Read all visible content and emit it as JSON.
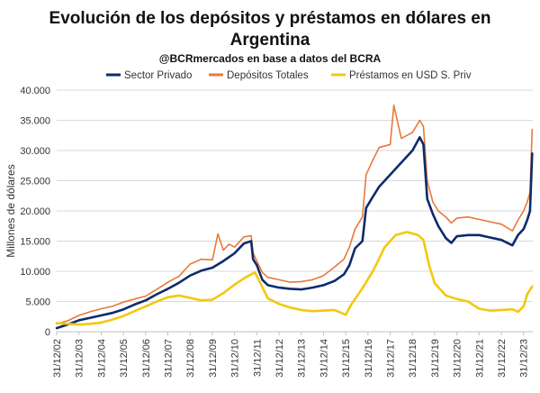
{
  "chart_data": {
    "type": "line",
    "title": "Evolución de los depósitos y préstamos en dólares en Argentina",
    "title_lines": [
      "Evolución de los depósitos y préstamos en dólares en",
      "Argentina"
    ],
    "subtitle": "@BCRmercados en base a datos del BCRA",
    "xlabel": "",
    "ylabel": "Millones de dólares",
    "ylim": [
      0,
      40000
    ],
    "xlim": [
      "2002-12-31",
      "2024-05-31"
    ],
    "y_ticks": [
      {
        "value": 0,
        "label": "0"
      },
      {
        "value": 5000,
        "label": "5.000"
      },
      {
        "value": 10000,
        "label": "10.000"
      },
      {
        "value": 15000,
        "label": "15.000"
      },
      {
        "value": 20000,
        "label": "20.000"
      },
      {
        "value": 25000,
        "label": "25.000"
      },
      {
        "value": 30000,
        "label": "30.000"
      },
      {
        "value": 35000,
        "label": "35.000"
      },
      {
        "value": 40000,
        "label": "40.000"
      }
    ],
    "x_ticks": [
      {
        "date": "2002-12-31",
        "label": "31/12/02"
      },
      {
        "date": "2003-12-31",
        "label": "31/12/03"
      },
      {
        "date": "2004-12-31",
        "label": "31/12/04"
      },
      {
        "date": "2005-12-31",
        "label": "31/12/05"
      },
      {
        "date": "2006-12-31",
        "label": "31/12/06"
      },
      {
        "date": "2007-12-31",
        "label": "31/12/07"
      },
      {
        "date": "2008-12-31",
        "label": "31/12/08"
      },
      {
        "date": "2009-12-31",
        "label": "31/12/09"
      },
      {
        "date": "2010-12-31",
        "label": "31/12/10"
      },
      {
        "date": "2011-12-31",
        "label": "31/12/11"
      },
      {
        "date": "2012-12-31",
        "label": "31/12/12"
      },
      {
        "date": "2013-12-31",
        "label": "31/12/13"
      },
      {
        "date": "2014-12-31",
        "label": "31/12/14"
      },
      {
        "date": "2015-12-31",
        "label": "31/12/15"
      },
      {
        "date": "2016-12-31",
        "label": "31/12/16"
      },
      {
        "date": "2017-12-31",
        "label": "31/12/17"
      },
      {
        "date": "2018-12-31",
        "label": "31/12/18"
      },
      {
        "date": "2019-12-31",
        "label": "31/12/19"
      },
      {
        "date": "2020-12-31",
        "label": "31/12/20"
      },
      {
        "date": "2021-12-31",
        "label": "31/12/21"
      },
      {
        "date": "2022-12-31",
        "label": "31/12/22"
      },
      {
        "date": "2023-12-31",
        "label": "31/12/23"
      }
    ],
    "grid": "horizontal",
    "legend_position": "top",
    "series": [
      {
        "name": "Sector Privado",
        "color": "#0d2b6b",
        "points": [
          [
            "2003-01-01",
            600
          ],
          [
            "2003-07-01",
            1200
          ],
          [
            "2004-01-01",
            1900
          ],
          [
            "2004-07-01",
            2300
          ],
          [
            "2005-01-01",
            2700
          ],
          [
            "2005-07-01",
            3100
          ],
          [
            "2006-01-01",
            3700
          ],
          [
            "2006-07-01",
            4500
          ],
          [
            "2007-01-01",
            5200
          ],
          [
            "2007-07-01",
            6200
          ],
          [
            "2008-01-01",
            7100
          ],
          [
            "2008-07-01",
            8100
          ],
          [
            "2009-01-01",
            9300
          ],
          [
            "2009-07-01",
            10100
          ],
          [
            "2010-01-01",
            10600
          ],
          [
            "2010-07-01",
            11700
          ],
          [
            "2011-01-01",
            13000
          ],
          [
            "2011-06-01",
            14600
          ],
          [
            "2011-10-01",
            15000
          ],
          [
            "2011-11-01",
            12000
          ],
          [
            "2012-01-01",
            11000
          ],
          [
            "2012-04-01",
            8600
          ],
          [
            "2012-07-01",
            7700
          ],
          [
            "2013-01-01",
            7300
          ],
          [
            "2013-07-01",
            7100
          ],
          [
            "2014-01-01",
            7000
          ],
          [
            "2014-07-01",
            7300
          ],
          [
            "2015-01-01",
            7700
          ],
          [
            "2015-07-01",
            8400
          ],
          [
            "2015-12-01",
            9500
          ],
          [
            "2016-03-01",
            11000
          ],
          [
            "2016-06-01",
            13800
          ],
          [
            "2016-10-01",
            15000
          ],
          [
            "2016-12-01",
            20500
          ],
          [
            "2017-03-01",
            22000
          ],
          [
            "2017-07-01",
            24000
          ],
          [
            "2018-01-01",
            26000
          ],
          [
            "2018-07-01",
            28000
          ],
          [
            "2019-01-01",
            30000
          ],
          [
            "2019-05-01",
            32200
          ],
          [
            "2019-07-01",
            31000
          ],
          [
            "2019-09-01",
            22000
          ],
          [
            "2019-12-01",
            19500
          ],
          [
            "2020-03-01",
            17500
          ],
          [
            "2020-07-01",
            15500
          ],
          [
            "2020-10-01",
            14700
          ],
          [
            "2021-01-01",
            15800
          ],
          [
            "2021-07-01",
            16000
          ],
          [
            "2022-01-01",
            16000
          ],
          [
            "2022-07-01",
            15600
          ],
          [
            "2023-01-01",
            15200
          ],
          [
            "2023-07-01",
            14300
          ],
          [
            "2023-10-01",
            16000
          ],
          [
            "2024-01-01",
            17000
          ],
          [
            "2024-03-01",
            18500
          ],
          [
            "2024-04-15",
            20000
          ],
          [
            "2024-05-20",
            29500
          ]
        ]
      },
      {
        "name": "Depósitos Totales",
        "color": "#e8783a",
        "points": [
          [
            "2003-01-01",
            1300
          ],
          [
            "2003-07-01",
            1800
          ],
          [
            "2004-01-01",
            2700
          ],
          [
            "2004-07-01",
            3300
          ],
          [
            "2005-01-01",
            3800
          ],
          [
            "2005-07-01",
            4200
          ],
          [
            "2006-01-01",
            4900
          ],
          [
            "2006-07-01",
            5400
          ],
          [
            "2007-01-01",
            5900
          ],
          [
            "2007-07-01",
            7000
          ],
          [
            "2008-01-01",
            8200
          ],
          [
            "2008-07-01",
            9200
          ],
          [
            "2009-01-01",
            11200
          ],
          [
            "2009-07-01",
            12000
          ],
          [
            "2010-01-01",
            11900
          ],
          [
            "2010-04-01",
            16200
          ],
          [
            "2010-07-01",
            13500
          ],
          [
            "2010-10-01",
            14500
          ],
          [
            "2011-01-01",
            14000
          ],
          [
            "2011-06-01",
            15700
          ],
          [
            "2011-10-01",
            15900
          ],
          [
            "2011-11-01",
            13000
          ],
          [
            "2012-01-01",
            11700
          ],
          [
            "2012-04-01",
            9800
          ],
          [
            "2012-07-01",
            9000
          ],
          [
            "2013-01-01",
            8600
          ],
          [
            "2013-07-01",
            8200
          ],
          [
            "2014-01-01",
            8300
          ],
          [
            "2014-07-01",
            8600
          ],
          [
            "2015-01-01",
            9300
          ],
          [
            "2015-07-01",
            10700
          ],
          [
            "2015-12-01",
            12000
          ],
          [
            "2016-03-01",
            14000
          ],
          [
            "2016-06-01",
            17000
          ],
          [
            "2016-10-01",
            19000
          ],
          [
            "2016-12-01",
            26000
          ],
          [
            "2017-03-01",
            28000
          ],
          [
            "2017-07-01",
            30500
          ],
          [
            "2018-01-01",
            31000
          ],
          [
            "2018-03-01",
            37500
          ],
          [
            "2018-07-01",
            32000
          ],
          [
            "2019-01-01",
            33000
          ],
          [
            "2019-05-01",
            35000
          ],
          [
            "2019-07-01",
            34000
          ],
          [
            "2019-09-01",
            25000
          ],
          [
            "2019-12-01",
            21500
          ],
          [
            "2020-03-01",
            20000
          ],
          [
            "2020-07-01",
            19000
          ],
          [
            "2020-10-01",
            18000
          ],
          [
            "2021-01-01",
            18800
          ],
          [
            "2021-07-01",
            19000
          ],
          [
            "2022-01-01",
            18600
          ],
          [
            "2022-07-01",
            18200
          ],
          [
            "2023-01-01",
            17800
          ],
          [
            "2023-07-01",
            16700
          ],
          [
            "2023-10-01",
            18500
          ],
          [
            "2024-01-01",
            20000
          ],
          [
            "2024-03-01",
            21500
          ],
          [
            "2024-04-15",
            23000
          ],
          [
            "2024-05-20",
            33500
          ]
        ]
      },
      {
        "name": "Préstamos en USD S. Priv",
        "color": "#f2c80f",
        "points": [
          [
            "2003-01-01",
            1400
          ],
          [
            "2003-07-01",
            1300
          ],
          [
            "2004-01-01",
            1200
          ],
          [
            "2004-07-01",
            1300
          ],
          [
            "2005-01-01",
            1500
          ],
          [
            "2005-07-01",
            2000
          ],
          [
            "2006-01-01",
            2600
          ],
          [
            "2006-07-01",
            3400
          ],
          [
            "2007-01-01",
            4200
          ],
          [
            "2007-07-01",
            5000
          ],
          [
            "2008-01-01",
            5700
          ],
          [
            "2008-07-01",
            6000
          ],
          [
            "2009-01-01",
            5600
          ],
          [
            "2009-07-01",
            5200
          ],
          [
            "2010-01-01",
            5300
          ],
          [
            "2010-07-01",
            6400
          ],
          [
            "2011-01-01",
            7800
          ],
          [
            "2011-07-01",
            9000
          ],
          [
            "2011-12-01",
            9800
          ],
          [
            "2012-03-01",
            8000
          ],
          [
            "2012-07-01",
            5500
          ],
          [
            "2013-01-01",
            4600
          ],
          [
            "2013-07-01",
            4000
          ],
          [
            "2014-01-01",
            3600
          ],
          [
            "2014-07-01",
            3400
          ],
          [
            "2015-01-01",
            3500
          ],
          [
            "2015-07-01",
            3600
          ],
          [
            "2016-01-01",
            2800
          ],
          [
            "2016-04-01",
            4500
          ],
          [
            "2016-10-01",
            7200
          ],
          [
            "2017-04-01",
            10200
          ],
          [
            "2017-10-01",
            14000
          ],
          [
            "2018-04-01",
            16000
          ],
          [
            "2018-10-01",
            16500
          ],
          [
            "2019-04-01",
            16000
          ],
          [
            "2019-07-01",
            15200
          ],
          [
            "2019-10-01",
            11000
          ],
          [
            "2020-01-01",
            8000
          ],
          [
            "2020-07-01",
            6000
          ],
          [
            "2021-01-01",
            5400
          ],
          [
            "2021-07-01",
            5000
          ],
          [
            "2022-01-01",
            3800
          ],
          [
            "2022-07-01",
            3500
          ],
          [
            "2023-01-01",
            3600
          ],
          [
            "2023-07-01",
            3700
          ],
          [
            "2023-10-01",
            3300
          ],
          [
            "2024-01-01",
            4200
          ],
          [
            "2024-03-01",
            6200
          ],
          [
            "2024-05-20",
            7500
          ]
        ]
      }
    ]
  }
}
